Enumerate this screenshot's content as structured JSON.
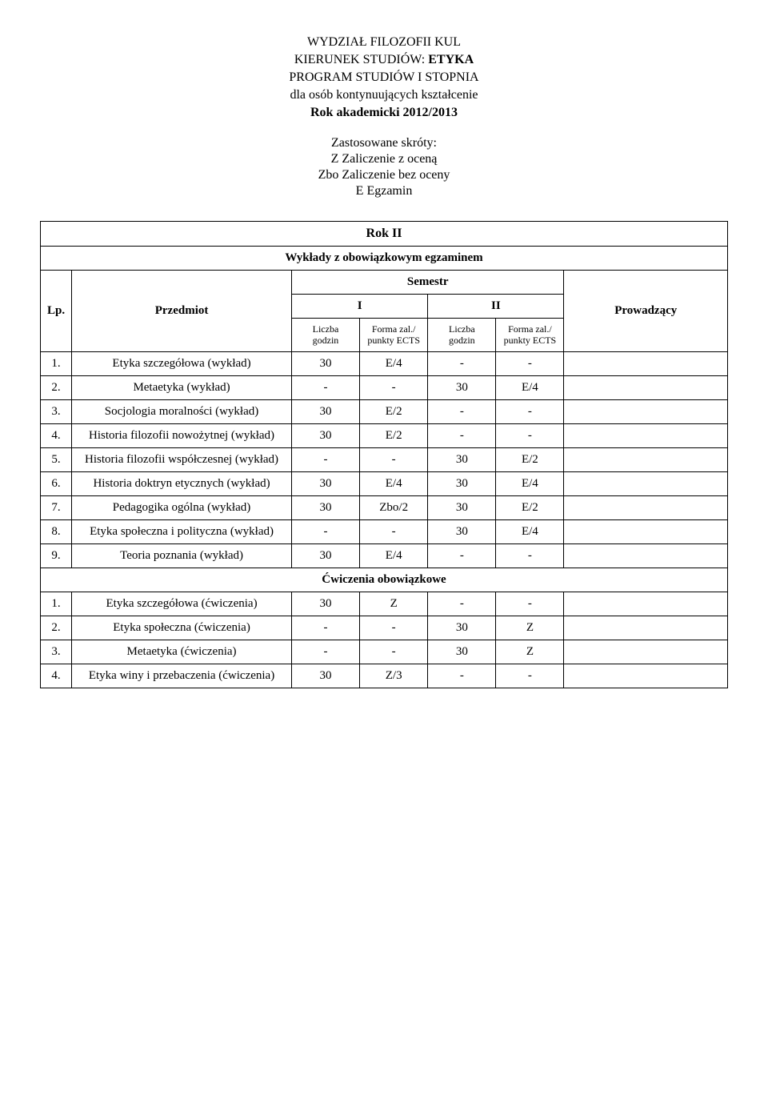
{
  "header": {
    "line1": "WYDZIAŁ FILOZOFII KUL",
    "line2_prefix": "KIERUNEK STUDIÓW: ",
    "line2_bold": "ETYKA",
    "line3": "PROGRAM STUDIÓW I STOPNIA",
    "line4": "dla osób kontynuujących kształcenie",
    "line5": "Rok akademicki 2012/2013"
  },
  "skroty": {
    "title": "Zastosowane skróty:",
    "lines": [
      "Z Zaliczenie z oceną",
      "Zbo Zaliczenie bez oceny",
      "E Egzamin"
    ]
  },
  "labels": {
    "rok": "Rok II",
    "wyklady": "Wykłady z obowiązkowym egzaminem",
    "semestr": "Semestr",
    "sem1": "I",
    "sem2": "II",
    "lp": "Lp.",
    "przedmiot": "Przedmiot",
    "liczba_godzin": "Liczba godzin",
    "forma_zal": "Forma zal./ punkty ECTS",
    "prowadzacy": "Prowadzący",
    "cwiczenia": "Ćwiczenia obowiązkowe"
  },
  "rows_wyklady": [
    {
      "lp": "1.",
      "name": "Etyka szczegółowa (wykład)",
      "v": [
        "30",
        "E/4",
        "-",
        "-"
      ]
    },
    {
      "lp": "2.",
      "name": "Metaetyka (wykład)",
      "v": [
        "-",
        "-",
        "30",
        "E/4"
      ]
    },
    {
      "lp": "3.",
      "name": "Socjologia moralności (wykład)",
      "v": [
        "30",
        "E/2",
        "-",
        "-"
      ]
    },
    {
      "lp": "4.",
      "name": "Historia filozofii nowożytnej (wykład)",
      "v": [
        "30",
        "E/2",
        "-",
        "-"
      ]
    },
    {
      "lp": "5.",
      "name": "Historia filozofii współczesnej (wykład)",
      "v": [
        "-",
        "-",
        "30",
        "E/2"
      ]
    },
    {
      "lp": "6.",
      "name": "Historia doktryn etycznych (wykład)",
      "v": [
        "30",
        "E/4",
        "30",
        "E/4"
      ]
    },
    {
      "lp": "7.",
      "name": "Pedagogika ogólna (wykład)",
      "v": [
        "30",
        "Zbo/2",
        "30",
        "E/2"
      ]
    },
    {
      "lp": "8.",
      "name": "Etyka społeczna i polityczna (wykład)",
      "v": [
        "-",
        "-",
        "30",
        "E/4"
      ]
    },
    {
      "lp": "9.",
      "name": "Teoria poznania (wykład)",
      "v": [
        "30",
        "E/4",
        "-",
        "-"
      ]
    }
  ],
  "rows_cwiczenia": [
    {
      "lp": "1.",
      "name": "Etyka szczegółowa (ćwiczenia)",
      "v": [
        "30",
        "Z",
        "-",
        "-"
      ]
    },
    {
      "lp": "2.",
      "name": "Etyka społeczna (ćwiczenia)",
      "v": [
        "-",
        "-",
        "30",
        "Z"
      ]
    },
    {
      "lp": "3.",
      "name": "Metaetyka (ćwiczenia)",
      "v": [
        "-",
        "-",
        "30",
        "Z"
      ]
    },
    {
      "lp": "4.",
      "name": "Etyka winy i przebaczenia (ćwiczenia)",
      "v": [
        "30",
        "Z/3",
        "-",
        "-"
      ]
    }
  ]
}
